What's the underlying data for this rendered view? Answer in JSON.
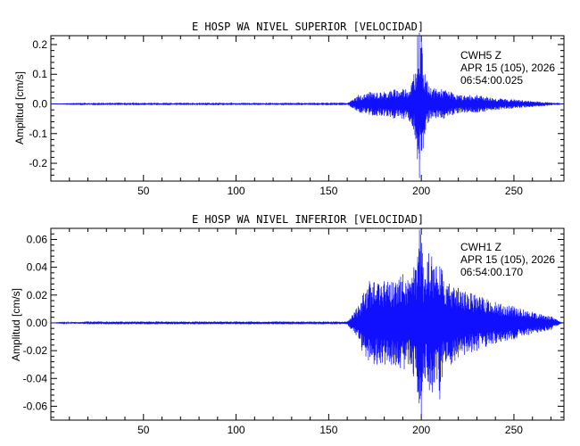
{
  "chart_data": [
    {
      "type": "line",
      "title": "E HOSP WA NIVEL SUPERIOR [VELOCIDAD]",
      "xlabel": "",
      "ylabel": "Amplitud [cm/s]",
      "xlim": [
        0,
        277
      ],
      "ylim": [
        -0.26,
        0.23
      ],
      "x_ticks": [
        50,
        100,
        150,
        200,
        250
      ],
      "y_ticks": [
        0.2,
        0.1,
        0.0,
        -0.1,
        -0.2
      ],
      "y_tick_labels": [
        "0.2",
        "0.1",
        "0.0",
        "-0.1",
        "-0.2"
      ],
      "annotation": [
        "CWH5   Z",
        "APR 15 (105), 2026",
        "06:54:00.025"
      ],
      "color": "#1010ff",
      "series": [
        {
          "x": [
            0,
            20,
            40,
            60,
            80,
            100,
            120,
            140,
            160,
            166,
            168,
            172,
            176,
            180,
            185,
            190,
            194,
            196,
            197,
            198,
            199,
            200,
            201,
            202,
            204,
            208,
            212,
            216,
            220,
            230,
            240,
            250,
            260,
            270,
            276
          ],
          "y": [
            0.0,
            0.002,
            -0.002,
            0.002,
            -0.002,
            0.002,
            -0.002,
            0.002,
            -0.002,
            0.03,
            -0.03,
            0.04,
            -0.04,
            0.04,
            -0.05,
            0.05,
            -0.06,
            0.1,
            -0.12,
            0.23,
            -0.25,
            0.21,
            -0.15,
            0.1,
            -0.06,
            0.05,
            -0.05,
            0.04,
            -0.03,
            0.03,
            -0.02,
            0.015,
            -0.01,
            0.005,
            0.0
          ]
        }
      ]
    },
    {
      "type": "line",
      "title": "E HOSP WA NIVEL INFERIOR [VELOCIDAD]",
      "xlabel": "",
      "ylabel": "Amplitud [cm/s]",
      "xlim": [
        0,
        277
      ],
      "ylim": [
        -0.07,
        0.068
      ],
      "x_ticks": [
        50,
        100,
        150,
        200,
        250
      ],
      "y_ticks": [
        0.06,
        0.04,
        0.02,
        0.0,
        -0.02,
        -0.04,
        -0.06
      ],
      "y_tick_labels": [
        "0.06",
        "0.04",
        "0.02",
        "0.00",
        "-0.02",
        "-0.04",
        "-0.06"
      ],
      "annotation": [
        "CWH1   Z",
        "APR 15 (105), 2026",
        "06:54:00.170"
      ],
      "color": "#1010ff",
      "series": [
        {
          "x": [
            0,
            20,
            40,
            60,
            80,
            100,
            120,
            140,
            160,
            166,
            168,
            172,
            176,
            180,
            185,
            190,
            194,
            196,
            198,
            199,
            200,
            201,
            202,
            204,
            206,
            208,
            210,
            212,
            216,
            220,
            230,
            240,
            250,
            260,
            270,
            276
          ],
          "y": [
            0.0,
            0.001,
            -0.001,
            0.001,
            -0.001,
            0.001,
            -0.001,
            0.001,
            -0.001,
            0.012,
            -0.02,
            0.03,
            -0.03,
            0.03,
            -0.03,
            0.035,
            -0.03,
            0.04,
            -0.05,
            0.067,
            -0.068,
            0.04,
            -0.04,
            0.05,
            -0.05,
            0.04,
            -0.055,
            0.03,
            -0.03,
            0.025,
            -0.02,
            0.015,
            -0.012,
            0.008,
            -0.005,
            0.0
          ]
        }
      ]
    }
  ]
}
